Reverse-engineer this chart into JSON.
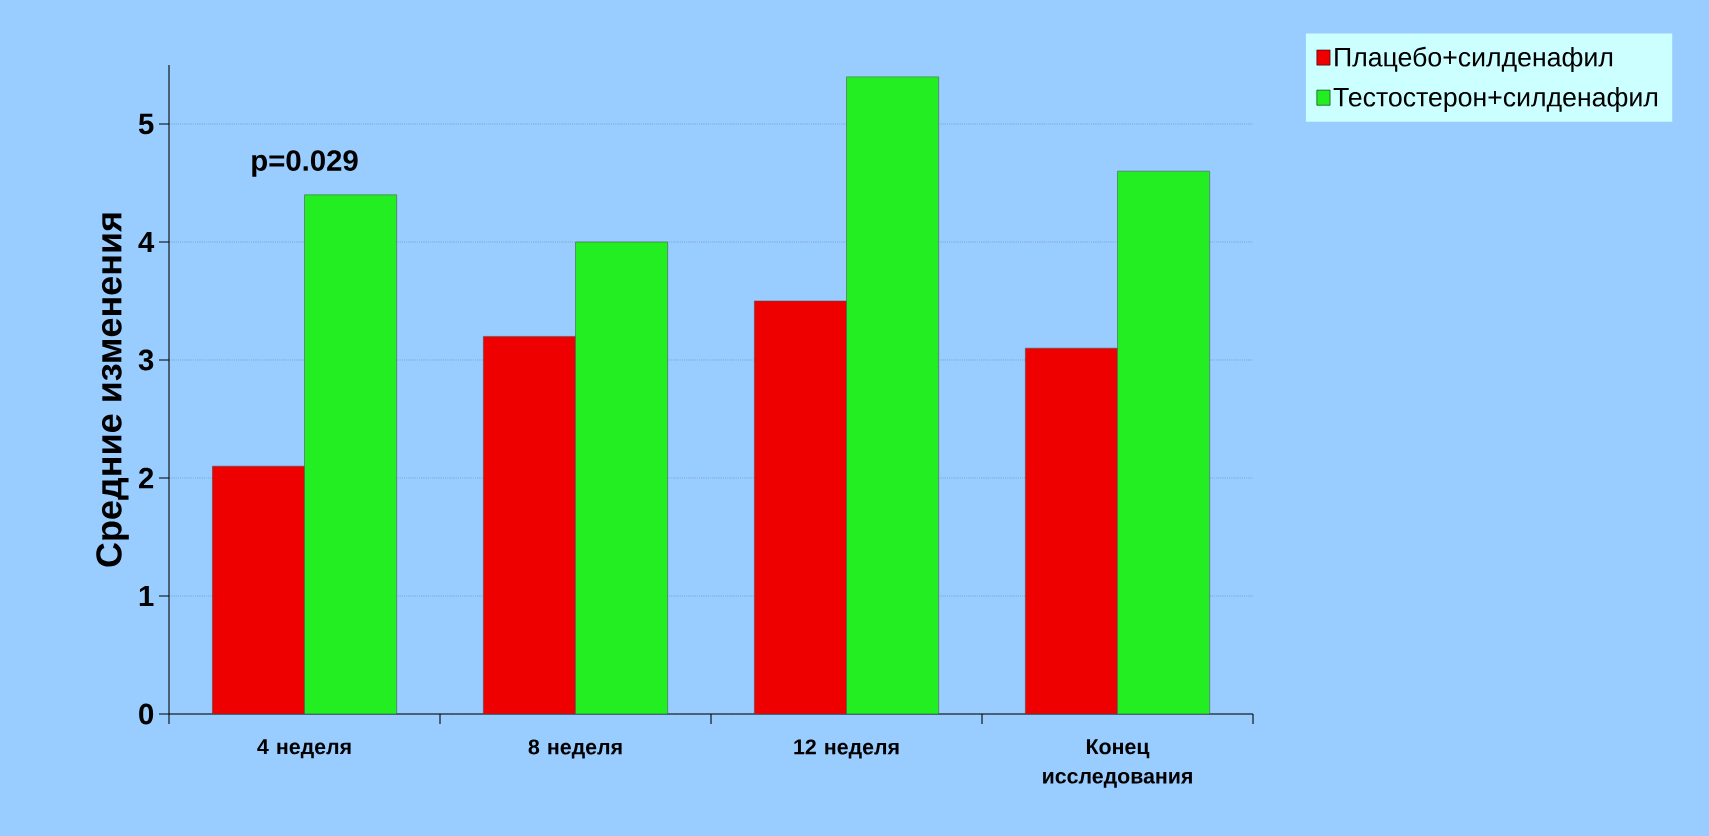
{
  "chart_data": {
    "type": "bar",
    "ylabel": "Средние изменения",
    "categories": [
      "4 неделя",
      "8 неделя",
      "12 неделя",
      "Конец исследования"
    ],
    "series": [
      {
        "name": "Плацебо+силденафил",
        "color": "#ee0000",
        "values": [
          2.1,
          3.2,
          3.5,
          3.1
        ]
      },
      {
        "name": "Тестостерон+силденафил",
        "color": "#22ee22",
        "values": [
          4.4,
          4.0,
          5.4,
          4.6
        ]
      }
    ],
    "ylim": [
      0,
      5.5
    ],
    "yticks": [
      0,
      1,
      2,
      3,
      4,
      5
    ],
    "grid": "y",
    "legend": "top right",
    "annotations": [
      {
        "text": "p=0.029",
        "x": "4 неделя",
        "y": 4.4
      }
    ]
  }
}
